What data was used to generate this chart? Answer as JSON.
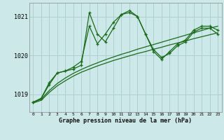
{
  "title": "Graphe pression niveau de la mer (hPa)",
  "bg_color": "#cce8e8",
  "grid_color": "#aacccc",
  "line_color": "#1a6b1a",
  "xlim": [
    -0.5,
    23.5
  ],
  "ylim": [
    1018.55,
    1021.35
  ],
  "yticks": [
    1019,
    1020,
    1021
  ],
  "xtick_labels": [
    "0",
    "1",
    "2",
    "3",
    "4",
    "5",
    "6",
    "7",
    "8",
    "9",
    "10",
    "11",
    "12",
    "13",
    "14",
    "15",
    "16",
    "17",
    "18",
    "19",
    "20",
    "21",
    "22",
    "23"
  ],
  "series": [
    {
      "x": [
        0,
        1,
        2,
        3,
        4,
        5,
        6,
        7,
        8,
        9,
        10,
        11,
        12,
        13,
        14,
        15,
        16,
        17,
        18,
        19,
        20,
        21,
        22,
        23
      ],
      "y": [
        1018.8,
        1018.9,
        1019.3,
        1019.55,
        1019.6,
        1019.7,
        1019.85,
        1020.75,
        1020.3,
        1020.55,
        1020.85,
        1021.05,
        1021.15,
        1021.0,
        1020.55,
        1020.15,
        1019.95,
        1020.05,
        1020.25,
        1020.35,
        1020.6,
        1020.7,
        1020.7,
        1020.55
      ],
      "marker": "+",
      "lw": 0.9
    },
    {
      "x": [
        0,
        1,
        2,
        3,
        4,
        5,
        6,
        7,
        8,
        9,
        10,
        11,
        12,
        13,
        14,
        15,
        16,
        17,
        18,
        19,
        20,
        21,
        22,
        23
      ],
      "y": [
        1018.8,
        1018.9,
        1019.25,
        1019.55,
        1019.6,
        1019.65,
        1019.75,
        1021.1,
        1020.55,
        1020.35,
        1020.7,
        1021.05,
        1021.1,
        1021.0,
        1020.55,
        1020.1,
        1019.9,
        1020.1,
        1020.3,
        1020.4,
        1020.65,
        1020.75,
        1020.75,
        1020.65
      ],
      "marker": "+",
      "lw": 0.9
    },
    {
      "x": [
        0,
        1,
        2,
        3,
        4,
        5,
        6,
        7,
        8,
        9,
        10,
        11,
        12,
        13,
        14,
        15,
        16,
        17,
        18,
        19,
        20,
        21,
        22,
        23
      ],
      "y": [
        1018.78,
        1018.85,
        1019.05,
        1019.22,
        1019.35,
        1019.47,
        1019.57,
        1019.65,
        1019.73,
        1019.8,
        1019.87,
        1019.93,
        1019.99,
        1020.05,
        1020.1,
        1020.16,
        1020.21,
        1020.27,
        1020.32,
        1020.37,
        1020.43,
        1020.48,
        1020.53,
        1020.58
      ],
      "marker": null,
      "lw": 0.9
    },
    {
      "x": [
        0,
        1,
        2,
        3,
        4,
        5,
        6,
        7,
        8,
        9,
        10,
        11,
        12,
        13,
        14,
        15,
        16,
        17,
        18,
        19,
        20,
        21,
        22,
        23
      ],
      "y": [
        1018.8,
        1018.88,
        1019.1,
        1019.28,
        1019.42,
        1019.54,
        1019.64,
        1019.73,
        1019.81,
        1019.89,
        1019.96,
        1020.03,
        1020.09,
        1020.16,
        1020.22,
        1020.28,
        1020.34,
        1020.4,
        1020.46,
        1020.52,
        1020.58,
        1020.64,
        1020.7,
        1020.75
      ],
      "marker": null,
      "lw": 0.9
    }
  ]
}
